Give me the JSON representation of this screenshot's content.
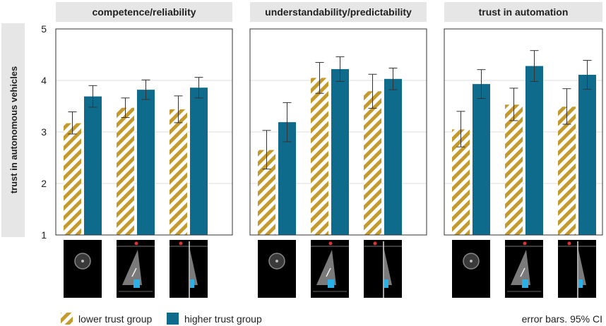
{
  "chart_data": {
    "type": "bar",
    "ylabel": "trust in autonomous vehicles",
    "ylim": [
      1,
      5
    ],
    "yticks": [
      1,
      2,
      3,
      4,
      5
    ],
    "grid": true,
    "colors": {
      "lower": "#c49a2c",
      "higher": "#0e6b8c",
      "strip": "#e6e6e6"
    },
    "series_names": [
      "lower trust group",
      "higher trust group"
    ],
    "facets": [
      {
        "title": "competence/reliability",
        "conditions": [
          "speedometer",
          "full display",
          "side display"
        ],
        "lower": {
          "mean": [
            3.17,
            3.47,
            3.44
          ],
          "ci_low": [
            2.96,
            3.28,
            3.18
          ],
          "ci_high": [
            3.39,
            3.66,
            3.7
          ]
        },
        "higher": {
          "mean": [
            3.69,
            3.82,
            3.86
          ],
          "ci_low": [
            3.48,
            3.63,
            3.66
          ],
          "ci_high": [
            3.9,
            4.01,
            4.06
          ]
        }
      },
      {
        "title": "understandability/predictability",
        "conditions": [
          "speedometer",
          "full display",
          "side display"
        ],
        "lower": {
          "mean": [
            2.65,
            4.05,
            3.79
          ],
          "ci_low": [
            2.28,
            3.75,
            3.46
          ],
          "ci_high": [
            3.03,
            4.35,
            4.12
          ]
        },
        "higher": {
          "mean": [
            3.19,
            4.22,
            4.03
          ],
          "ci_low": [
            2.81,
            3.98,
            3.82
          ],
          "ci_high": [
            3.57,
            4.46,
            4.24
          ]
        }
      },
      {
        "title": "trust in automation",
        "conditions": [
          "speedometer",
          "full display",
          "side display"
        ],
        "lower": {
          "mean": [
            3.05,
            3.53,
            3.49
          ],
          "ci_low": [
            2.71,
            3.22,
            3.15
          ],
          "ci_high": [
            3.4,
            3.85,
            3.84
          ]
        },
        "higher": {
          "mean": [
            3.93,
            4.28,
            4.11
          ],
          "ci_low": [
            3.65,
            3.98,
            3.83
          ],
          "ci_high": [
            4.21,
            4.58,
            4.39
          ]
        }
      }
    ],
    "note": "error bars. 95% CI"
  }
}
